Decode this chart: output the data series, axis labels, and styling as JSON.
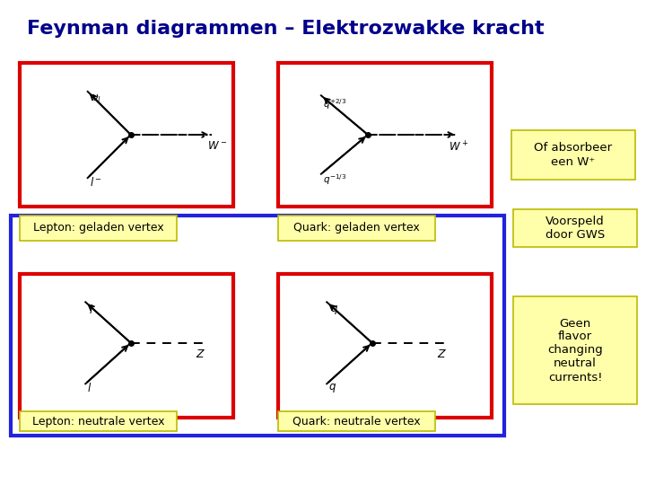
{
  "title": "Feynman diagrammen – Elektrozwakke kracht",
  "title_color": "#00008B",
  "title_fontsize": 16,
  "bg_color": "#FFFFFF",
  "yellow_bg": "#FFFFAA",
  "red_border": "#DD0000",
  "blue_border": "#2222DD",
  "label_top_left": "Lepton: geladen vertex",
  "label_top_right": "Quark: geladen vertex",
  "label_bot_left": "Lepton: neutrale vertex",
  "label_bot_right": "Quark: neutrale vertex",
  "note_top_right": "Of absorbeer\neen W⁺",
  "note_mid_right": "Voorspeld\ndoor GWS",
  "note_bot_right": "Geen\nflavor\nchanging\nneutral\ncurrents!"
}
